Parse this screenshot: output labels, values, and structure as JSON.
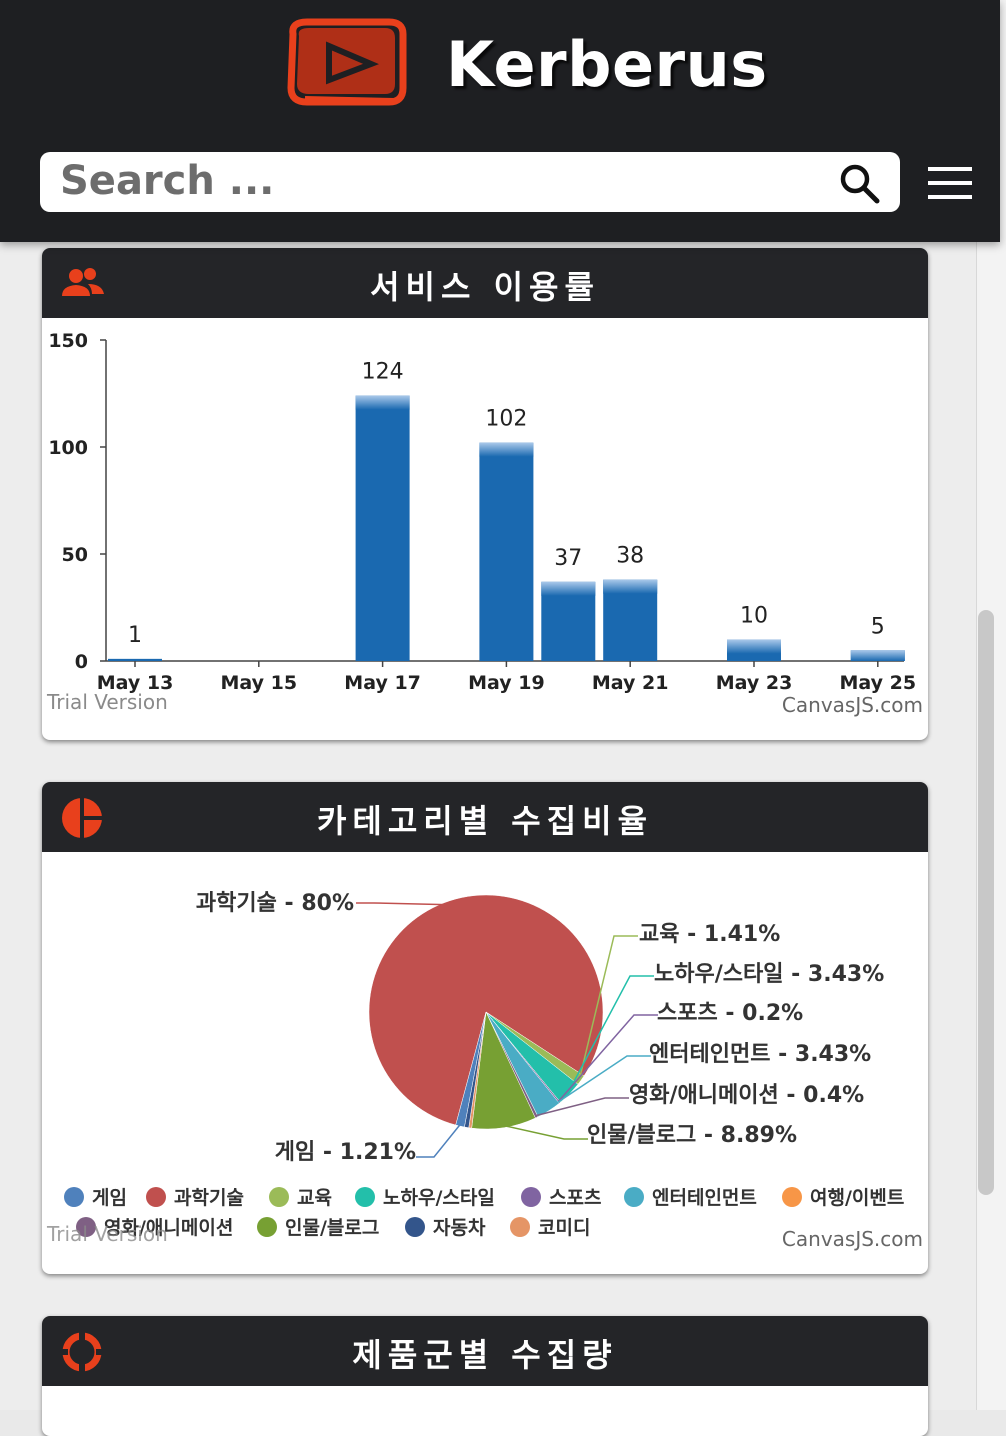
{
  "app": {
    "brand": "Kerberus",
    "search_placeholder": "Search ..."
  },
  "colors": {
    "accent": "#e8401c",
    "header_bg": "#1e1f22",
    "bar": "#1a69b0"
  },
  "icons": {
    "logo": "play-logo-icon",
    "search": "search-icon",
    "menu": "hamburger-menu-icon",
    "usage": "users-icon",
    "category": "pie-icon",
    "product": "ring-icon"
  },
  "cards": {
    "usage": {
      "title": "서비스 이용률",
      "watermark_left": "Trial Version",
      "watermark_right": "CanvasJS.com"
    },
    "category": {
      "title": "카테고리별 수집비율",
      "watermark_left": "Trial Version",
      "watermark_right": "CanvasJS.com"
    },
    "product": {
      "title": "제품군별 수집량"
    }
  },
  "chart_data": [
    {
      "type": "bar",
      "title": "",
      "x_tick_labels": [
        "May 13",
        "May 15",
        "May 17",
        "May 19",
        "May 21",
        "May 23",
        "May 25"
      ],
      "y_tick_labels": [
        "0",
        "50",
        "100",
        "150"
      ],
      "ylim": [
        0,
        150
      ],
      "points": [
        {
          "x": "May 13",
          "value": 1
        },
        {
          "x": "May 17",
          "value": 124
        },
        {
          "x": "May 19",
          "value": 102
        },
        {
          "x": "May 20",
          "value": 37
        },
        {
          "x": "May 21",
          "value": 38
        },
        {
          "x": "May 23",
          "value": 10
        },
        {
          "x": "May 25",
          "value": 5
        }
      ],
      "data_labels": true,
      "grid": false
    },
    {
      "type": "pie",
      "slices": [
        {
          "name": "게임",
          "label": "게임 - 1.21%",
          "value": 1.21,
          "color": "#4f81bc"
        },
        {
          "name": "과학기술",
          "label": "과학기술 - 80%",
          "value": 80,
          "color": "#c0504e"
        },
        {
          "name": "교육",
          "label": "교육 - 1.41%",
          "value": 1.41,
          "color": "#9bbb58"
        },
        {
          "name": "노하우/스타일",
          "label": "노하우/스타일 - 3.43%",
          "value": 3.43,
          "color": "#23bfaa"
        },
        {
          "name": "스포츠",
          "label": "스포츠 - 0.2%",
          "value": 0.2,
          "color": "#8064a1"
        },
        {
          "name": "엔터테인먼트",
          "label": "엔터테인먼트 - 3.43%",
          "value": 3.43,
          "color": "#4aacc5"
        },
        {
          "name": "여행/이벤트",
          "label": "",
          "value": 0,
          "color": "#f79647"
        },
        {
          "name": "영화/애니메이션",
          "label": "영화/애니메이션 - 0.4%",
          "value": 0.4,
          "color": "#7f6084"
        },
        {
          "name": "인물/블로그",
          "label": "인물/블로그 - 8.89%",
          "value": 8.89,
          "color": "#77a033"
        },
        {
          "name": "자동차",
          "label": "",
          "value": 0.6,
          "color": "#33558b"
        },
        {
          "name": "코미디",
          "label": "",
          "value": 0.4,
          "color": "#e59566"
        }
      ],
      "legend": "bottom"
    }
  ]
}
